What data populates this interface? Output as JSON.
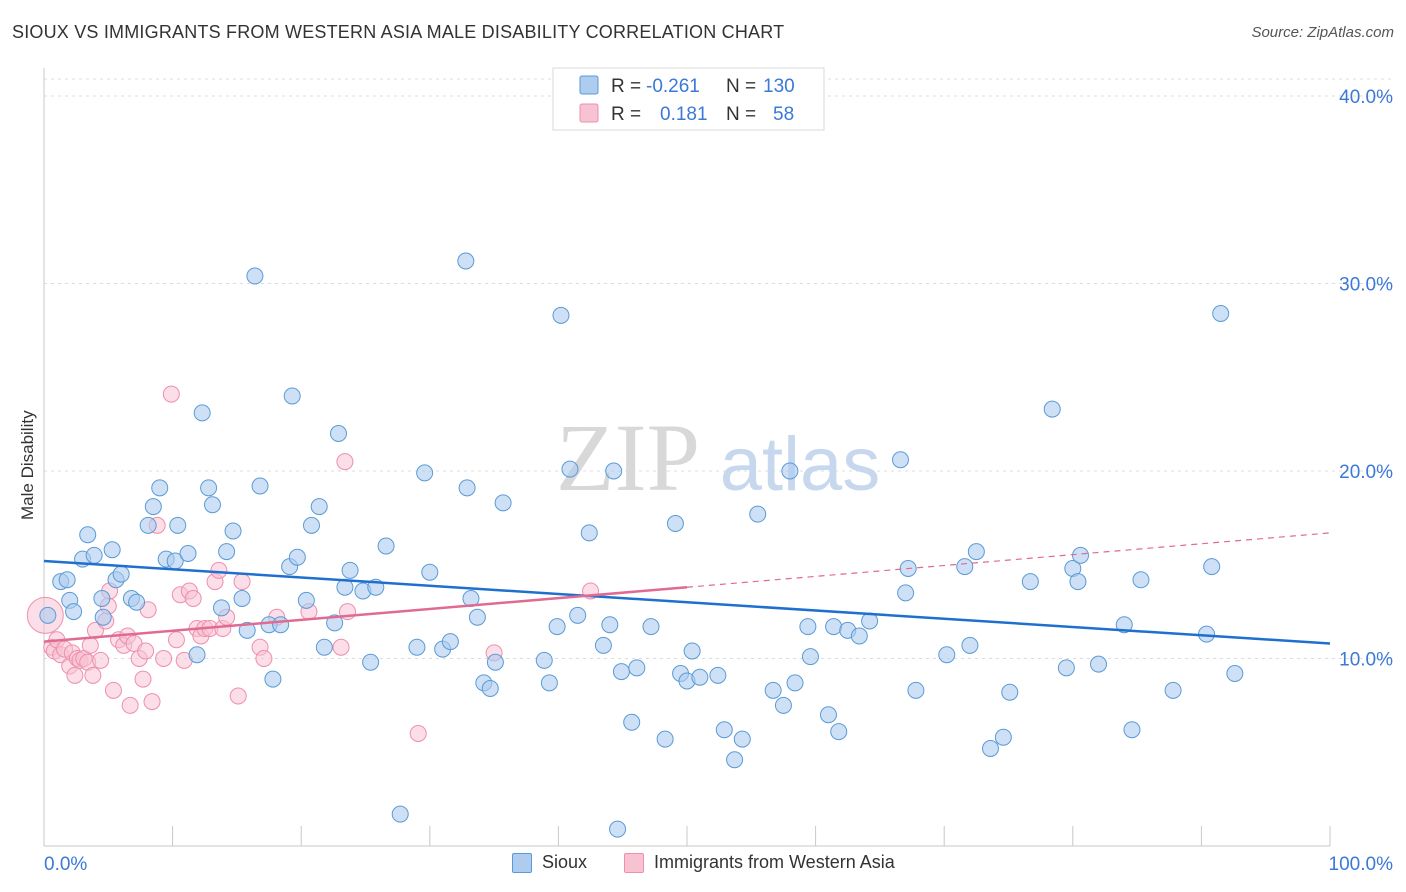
{
  "title": "SIOUX VS IMMIGRANTS FROM WESTERN ASIA MALE DISABILITY CORRELATION CHART",
  "source": "Source: ZipAtlas.com",
  "watermark": {
    "zip": "ZIP",
    "atlas": "atlas"
  },
  "colors": {
    "sioux": "#5b9bd5",
    "sioux_fill": "#aecbf0",
    "sioux_line": "#1f6fcf",
    "wa": "#ee8fae",
    "wa_fill": "#f7c3d3",
    "wa_line": "#e06a92",
    "axis_text": "#3b78d8"
  },
  "legend_top": {
    "rows": [
      {
        "r_label": "R =",
        "r_value": "-0.261",
        "n_label": "N =",
        "n_value": "130"
      },
      {
        "r_label": "R =",
        "r_value": "0.181",
        "n_label": "N =",
        "n_value": "58"
      }
    ]
  },
  "legend_bottom": {
    "sioux": "Sioux",
    "wa": "Immigrants from Western Asia"
  },
  "chart_data": {
    "type": "scatter",
    "title": "SIOUX VS IMMIGRANTS FROM WESTERN ASIA MALE DISABILITY CORRELATION CHART",
    "xlabel": "",
    "ylabel": "Male Disability",
    "xlim": [
      0,
      100
    ],
    "ylim": [
      0,
      40
    ],
    "x_tick_labels": [
      "0.0%",
      "100.0%"
    ],
    "y_tick_labels": [
      "10.0%",
      "20.0%",
      "30.0%",
      "40.0%"
    ],
    "y_ticks": [
      10,
      20,
      30,
      40
    ],
    "grid": true,
    "legend_position": "top-center",
    "series": [
      {
        "name": "Sioux",
        "r": -0.261,
        "n": 130,
        "trend": {
          "x": [
            0,
            100
          ],
          "y": [
            15.2,
            10.8
          ]
        },
        "points": [
          [
            0.3,
            12.3
          ],
          [
            1.3,
            14.1
          ],
          [
            1.8,
            14.2
          ],
          [
            2.0,
            13.1
          ],
          [
            2.3,
            12.5
          ],
          [
            3.0,
            15.3
          ],
          [
            3.4,
            16.6
          ],
          [
            3.9,
            15.5
          ],
          [
            4.5,
            13.2
          ],
          [
            4.6,
            12.2
          ],
          [
            5.3,
            15.8
          ],
          [
            5.6,
            14.2
          ],
          [
            6.0,
            14.5
          ],
          [
            6.8,
            13.2
          ],
          [
            7.2,
            13.0
          ],
          [
            8.1,
            17.1
          ],
          [
            8.5,
            18.1
          ],
          [
            9.0,
            19.1
          ],
          [
            9.5,
            15.3
          ],
          [
            10.2,
            15.2
          ],
          [
            10.4,
            17.1
          ],
          [
            11.2,
            15.6
          ],
          [
            11.9,
            10.2
          ],
          [
            12.3,
            23.1
          ],
          [
            12.8,
            19.1
          ],
          [
            13.1,
            18.2
          ],
          [
            13.8,
            12.7
          ],
          [
            14.2,
            15.7
          ],
          [
            14.7,
            16.8
          ],
          [
            15.4,
            13.2
          ],
          [
            15.8,
            11.5
          ],
          [
            16.4,
            30.4
          ],
          [
            16.8,
            19.2
          ],
          [
            17.5,
            11.8
          ],
          [
            17.8,
            8.9
          ],
          [
            18.4,
            11.8
          ],
          [
            19.1,
            14.9
          ],
          [
            19.3,
            24.0
          ],
          [
            19.7,
            15.4
          ],
          [
            20.4,
            13.1
          ],
          [
            20.8,
            17.1
          ],
          [
            21.4,
            18.1
          ],
          [
            21.8,
            10.6
          ],
          [
            22.6,
            11.9
          ],
          [
            22.9,
            22.0
          ],
          [
            23.4,
            13.8
          ],
          [
            23.8,
            14.7
          ],
          [
            24.8,
            13.6
          ],
          [
            25.4,
            9.8
          ],
          [
            25.8,
            13.8
          ],
          [
            26.6,
            16.0
          ],
          [
            27.7,
            1.7
          ],
          [
            29.0,
            10.6
          ],
          [
            29.6,
            19.9
          ],
          [
            30.0,
            14.6
          ],
          [
            31.0,
            10.5
          ],
          [
            31.6,
            10.9
          ],
          [
            32.8,
            31.2
          ],
          [
            32.9,
            19.1
          ],
          [
            33.2,
            13.2
          ],
          [
            33.7,
            12.2
          ],
          [
            34.2,
            8.7
          ],
          [
            34.7,
            8.4
          ],
          [
            35.1,
            9.8
          ],
          [
            35.7,
            18.3
          ],
          [
            38.9,
            9.9
          ],
          [
            39.3,
            8.7
          ],
          [
            39.9,
            11.7
          ],
          [
            40.2,
            28.3
          ],
          [
            40.9,
            20.1
          ],
          [
            41.5,
            12.3
          ],
          [
            42.4,
            16.7
          ],
          [
            43.5,
            10.7
          ],
          [
            44.0,
            11.8
          ],
          [
            44.3,
            20.0
          ],
          [
            44.6,
            0.9
          ],
          [
            44.9,
            9.3
          ],
          [
            45.7,
            6.6
          ],
          [
            46.1,
            9.5
          ],
          [
            47.2,
            11.7
          ],
          [
            48.3,
            5.7
          ],
          [
            49.1,
            17.2
          ],
          [
            49.5,
            9.2
          ],
          [
            50.0,
            8.8
          ],
          [
            50.4,
            10.4
          ],
          [
            51.0,
            9.0
          ],
          [
            52.4,
            9.1
          ],
          [
            52.9,
            6.2
          ],
          [
            53.7,
            4.6
          ],
          [
            54.3,
            5.7
          ],
          [
            55.5,
            17.7
          ],
          [
            56.7,
            8.3
          ],
          [
            57.5,
            7.5
          ],
          [
            58.0,
            20.0
          ],
          [
            58.4,
            8.7
          ],
          [
            59.4,
            11.7
          ],
          [
            59.6,
            10.1
          ],
          [
            61.0,
            7.0
          ],
          [
            61.4,
            11.7
          ],
          [
            61.8,
            6.1
          ],
          [
            62.5,
            11.5
          ],
          [
            63.4,
            11.2
          ],
          [
            64.2,
            12.0
          ],
          [
            66.6,
            20.6
          ],
          [
            67.0,
            13.5
          ],
          [
            67.2,
            14.8
          ],
          [
            67.8,
            8.3
          ],
          [
            70.2,
            10.2
          ],
          [
            71.6,
            14.9
          ],
          [
            72.0,
            10.7
          ],
          [
            72.5,
            15.7
          ],
          [
            73.6,
            5.2
          ],
          [
            74.6,
            5.8
          ],
          [
            75.1,
            8.2
          ],
          [
            76.7,
            14.1
          ],
          [
            78.4,
            23.3
          ],
          [
            79.5,
            9.5
          ],
          [
            80.0,
            14.8
          ],
          [
            80.4,
            14.1
          ],
          [
            80.6,
            15.5
          ],
          [
            82.0,
            9.7
          ],
          [
            84.0,
            11.8
          ],
          [
            84.6,
            6.2
          ],
          [
            85.3,
            14.2
          ],
          [
            87.8,
            8.3
          ],
          [
            90.4,
            11.3
          ],
          [
            90.8,
            14.9
          ],
          [
            91.5,
            28.4
          ],
          [
            92.6,
            9.2
          ]
        ]
      },
      {
        "name": "Immigrants from Western Asia",
        "r": 0.181,
        "n": 58,
        "trend": {
          "x": [
            0,
            50
          ],
          "y": [
            10.9,
            13.8
          ]
        },
        "trend_extension": {
          "x": [
            50,
            100
          ],
          "y": [
            13.8,
            16.7
          ]
        },
        "points": [
          [
            0.6,
            10.6
          ],
          [
            0.8,
            10.4
          ],
          [
            1.0,
            11.0
          ],
          [
            1.3,
            10.2
          ],
          [
            1.6,
            10.5
          ],
          [
            2.0,
            9.6
          ],
          [
            2.2,
            10.3
          ],
          [
            2.4,
            9.1
          ],
          [
            2.6,
            10.0
          ],
          [
            2.8,
            9.9
          ],
          [
            3.1,
            10.0
          ],
          [
            3.4,
            9.8
          ],
          [
            3.6,
            10.7
          ],
          [
            3.8,
            9.1
          ],
          [
            4.0,
            11.5
          ],
          [
            4.4,
            9.9
          ],
          [
            4.8,
            12.0
          ],
          [
            5.0,
            12.8
          ],
          [
            5.1,
            13.6
          ],
          [
            5.4,
            8.3
          ],
          [
            5.8,
            11.0
          ],
          [
            6.2,
            10.7
          ],
          [
            6.5,
            11.2
          ],
          [
            6.7,
            7.5
          ],
          [
            7.0,
            10.8
          ],
          [
            7.4,
            10.0
          ],
          [
            7.7,
            8.9
          ],
          [
            7.9,
            10.4
          ],
          [
            8.1,
            12.6
          ],
          [
            8.4,
            7.7
          ],
          [
            8.8,
            17.1
          ],
          [
            9.3,
            10.0
          ],
          [
            9.9,
            24.1
          ],
          [
            10.3,
            11.0
          ],
          [
            10.6,
            13.4
          ],
          [
            10.9,
            9.9
          ],
          [
            11.3,
            13.6
          ],
          [
            11.6,
            13.2
          ],
          [
            11.9,
            11.6
          ],
          [
            12.2,
            11.2
          ],
          [
            12.5,
            11.6
          ],
          [
            12.9,
            11.6
          ],
          [
            13.3,
            14.1
          ],
          [
            13.6,
            14.7
          ],
          [
            13.9,
            11.6
          ],
          [
            14.2,
            12.2
          ],
          [
            15.1,
            8.0
          ],
          [
            15.4,
            14.1
          ],
          [
            16.8,
            10.6
          ],
          [
            17.1,
            10.0
          ],
          [
            18.1,
            12.2
          ],
          [
            20.6,
            12.5
          ],
          [
            23.1,
            10.6
          ],
          [
            23.4,
            20.5
          ],
          [
            23.6,
            12.5
          ],
          [
            29.1,
            6.0
          ],
          [
            35.0,
            10.3
          ],
          [
            42.5,
            13.6
          ]
        ]
      }
    ]
  }
}
